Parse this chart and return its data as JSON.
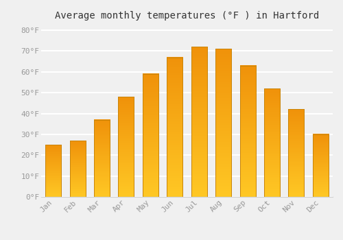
{
  "title": "Average monthly temperatures (°F ) in Hartford",
  "months": [
    "Jan",
    "Feb",
    "Mar",
    "Apr",
    "May",
    "Jun",
    "Jul",
    "Aug",
    "Sep",
    "Oct",
    "Nov",
    "Dec"
  ],
  "values": [
    25,
    27,
    37,
    48,
    59,
    67,
    72,
    71,
    63,
    52,
    42,
    30
  ],
  "bar_color_top": "#FFC825",
  "bar_color_bottom": "#F0920A",
  "bar_edge_color": "#C8850A",
  "background_color": "#f0f0f0",
  "plot_bg_color": "#f0f0f0",
  "grid_color": "#ffffff",
  "ylim": [
    0,
    83
  ],
  "yticks": [
    0,
    10,
    20,
    30,
    40,
    50,
    60,
    70,
    80
  ],
  "ytick_labels": [
    "0°F",
    "10°F",
    "20°F",
    "30°F",
    "40°F",
    "50°F",
    "60°F",
    "70°F",
    "80°F"
  ],
  "title_fontsize": 10,
  "tick_fontsize": 8,
  "tick_color": "#999999",
  "font_family": "monospace",
  "bar_width": 0.65
}
